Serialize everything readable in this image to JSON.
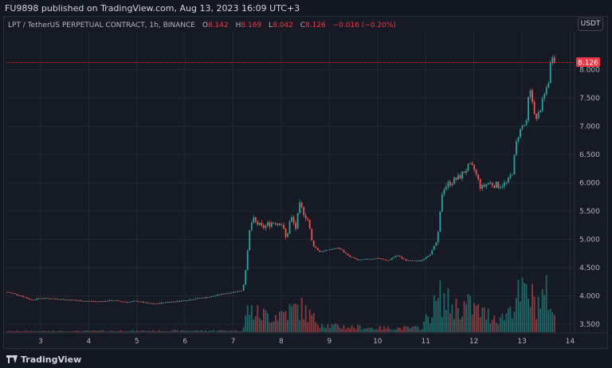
{
  "header": {
    "publish_line": "FU9898 published on TradingView.com, Aug 13, 2023 16:09 UTC+3"
  },
  "symbol_bar": {
    "title": "LPT / TetherUS PERPETUAL CONTRACT, 1h, BINANCE",
    "ohlc": [
      {
        "key": "O",
        "value": "8.142"
      },
      {
        "key": "H",
        "value": "8.169"
      },
      {
        "key": "L",
        "value": "8.042"
      },
      {
        "key": "C",
        "value": "8.126"
      }
    ],
    "change": "−0.016 (−0.20%)"
  },
  "currency_button": "USDT",
  "last_price_label": "8.126",
  "footer": {
    "brand": "TradingView"
  },
  "colors": {
    "up": "#26a69a",
    "down": "#ef5350",
    "background": "#161a25",
    "grid": "#232734",
    "text": "#b2b5be",
    "last_price": "#f23645"
  },
  "chart_data": {
    "type": "candlestick",
    "symbol": "LPTUSDT.P",
    "exchange": "BINANCE",
    "interval": "1h",
    "x_ticks": [
      "3",
      "4",
      "5",
      "6",
      "7",
      "8",
      "9",
      "10",
      "11",
      "12",
      "13",
      "14"
    ],
    "y_ticks": [
      "8.000",
      "7.500",
      "7.000",
      "6.500",
      "6.000",
      "5.500",
      "5.000",
      "4.500",
      "4.000",
      "3.500"
    ],
    "ylim": [
      3.38,
      8.55
    ],
    "xlim": [
      2.25,
      14.0
    ],
    "last_price": 8.126,
    "grid": true,
    "price_path": [
      [
        2.3,
        4.07
      ],
      [
        2.6,
        4.0
      ],
      [
        2.8,
        3.93
      ],
      [
        3.0,
        3.96
      ],
      [
        3.3,
        3.95
      ],
      [
        3.6,
        3.93
      ],
      [
        3.9,
        3.91
      ],
      [
        4.2,
        3.9
      ],
      [
        4.5,
        3.92
      ],
      [
        4.8,
        3.89
      ],
      [
        5.0,
        3.91
      ],
      [
        5.2,
        3.87
      ],
      [
        5.4,
        3.86
      ],
      [
        5.6,
        3.89
      ],
      [
        5.9,
        3.91
      ],
      [
        6.2,
        3.95
      ],
      [
        6.5,
        3.98
      ],
      [
        6.8,
        4.04
      ],
      [
        7.0,
        4.07
      ],
      [
        7.2,
        4.1
      ],
      [
        7.28,
        4.6
      ],
      [
        7.33,
        5.1
      ],
      [
        7.4,
        5.35
      ],
      [
        7.6,
        5.2
      ],
      [
        7.8,
        5.3
      ],
      [
        8.0,
        5.3
      ],
      [
        8.1,
        5.0
      ],
      [
        8.2,
        5.4
      ],
      [
        8.3,
        5.2
      ],
      [
        8.38,
        5.6
      ],
      [
        8.45,
        5.5
      ],
      [
        8.55,
        5.35
      ],
      [
        8.65,
        4.9
      ],
      [
        8.8,
        4.78
      ],
      [
        9.0,
        4.82
      ],
      [
        9.2,
        4.85
      ],
      [
        9.4,
        4.7
      ],
      [
        9.6,
        4.63
      ],
      [
        9.8,
        4.65
      ],
      [
        10.0,
        4.67
      ],
      [
        10.2,
        4.62
      ],
      [
        10.4,
        4.72
      ],
      [
        10.6,
        4.62
      ],
      [
        10.9,
        4.62
      ],
      [
        11.1,
        4.75
      ],
      [
        11.25,
        5.0
      ],
      [
        11.35,
        5.9
      ],
      [
        11.5,
        6.0
      ],
      [
        11.7,
        6.1
      ],
      [
        11.9,
        6.3
      ],
      [
        12.0,
        6.25
      ],
      [
        12.15,
        5.9
      ],
      [
        12.3,
        6.0
      ],
      [
        12.5,
        5.95
      ],
      [
        12.7,
        6.0
      ],
      [
        12.8,
        6.2
      ],
      [
        12.9,
        6.8
      ],
      [
        13.0,
        7.0
      ],
      [
        13.1,
        7.05
      ],
      [
        13.15,
        7.7
      ],
      [
        13.3,
        7.1
      ],
      [
        13.45,
        7.5
      ],
      [
        13.55,
        7.8
      ],
      [
        13.62,
        8.3
      ],
      [
        13.7,
        8.126
      ]
    ],
    "volume_profile": [
      [
        2.3,
        0.02
      ],
      [
        7.2,
        0.04
      ],
      [
        7.3,
        0.55
      ],
      [
        7.5,
        0.45
      ],
      [
        7.8,
        0.4
      ],
      [
        8.1,
        0.5
      ],
      [
        8.4,
        0.6
      ],
      [
        8.7,
        0.3
      ],
      [
        9.0,
        0.15
      ],
      [
        10.0,
        0.1
      ],
      [
        10.9,
        0.1
      ],
      [
        11.3,
        0.85
      ],
      [
        11.6,
        0.6
      ],
      [
        11.9,
        0.65
      ],
      [
        12.2,
        0.45
      ],
      [
        12.6,
        0.35
      ],
      [
        12.9,
        0.85
      ],
      [
        13.1,
        0.95
      ],
      [
        13.3,
        0.7
      ],
      [
        13.55,
        0.95
      ],
      [
        13.7,
        0.2
      ]
    ]
  }
}
